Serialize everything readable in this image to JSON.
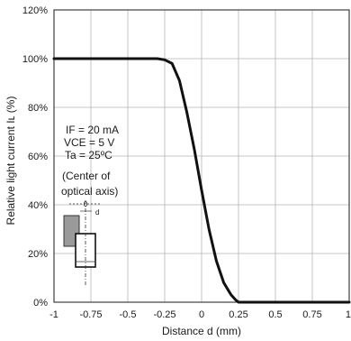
{
  "chart_data": {
    "type": "line",
    "title": "",
    "xlabel": "Distance d (mm)",
    "ylabel": "Relative light current Iʟ (%)",
    "xlim": [
      -1,
      1
    ],
    "ylim": [
      0,
      120
    ],
    "grid": true,
    "x_ticks": [
      "-1",
      "-0.75",
      "-0.5",
      "-0.25",
      "0",
      "0.25",
      "0.5",
      "0.75",
      "1"
    ],
    "y_ticks": [
      "0%",
      "20%",
      "40%",
      "60%",
      "80%",
      "100%",
      "120%"
    ],
    "series": [
      {
        "color": "#111111",
        "x": [
          -1,
          -0.3,
          -0.25,
          -0.2,
          -0.15,
          -0.1,
          -0.05,
          0,
          0.05,
          0.1,
          0.15,
          0.2,
          0.23,
          0.25,
          0.3,
          1
        ],
        "y": [
          100,
          100,
          99.5,
          98,
          91,
          78,
          63,
          46,
          30,
          17,
          8,
          3,
          1,
          0,
          0,
          0
        ]
      }
    ],
    "annotations": {
      "conditions": [
        "IF = 20 mA",
        "VCE = 5 V",
        "Ta = 25ºC"
      ],
      "center_note": [
        "(Center of",
        "optical axis)"
      ],
      "diagram_labels": [
        "0",
        "d"
      ]
    }
  }
}
